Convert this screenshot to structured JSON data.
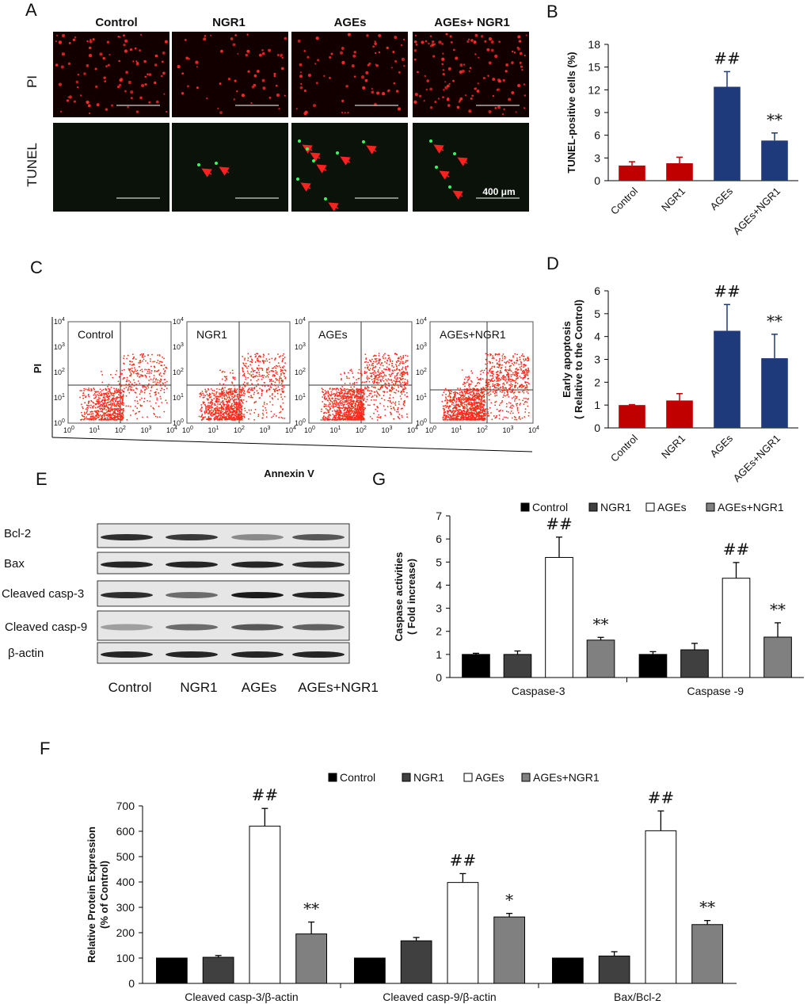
{
  "panel_letters": {
    "a": "A",
    "b": "B",
    "c": "C",
    "d": "D",
    "e": "E",
    "f": "F",
    "g": "G"
  },
  "panel_a": {
    "columns": [
      "Control",
      "NGR1",
      "AGEs",
      "AGEs+ NGR1"
    ],
    "rows": [
      "PI",
      "TUNEL"
    ],
    "scale_bar": "400 μm"
  },
  "panel_c": {
    "plots": [
      "Control",
      "NGR1",
      "AGEs",
      "AGEs+NGR1"
    ],
    "xlabel": "Annexin V",
    "ylabel": "PI",
    "ticks": [
      "10",
      "10",
      "10",
      "10",
      "10"
    ],
    "tick_exponents": [
      "0",
      "1",
      "2",
      "3",
      "4"
    ]
  },
  "panel_e": {
    "proteins": [
      "Bcl-2",
      "Bax",
      "Cleaved casp-3",
      "Cleaved casp-9",
      "β-actin"
    ],
    "groups": [
      "Control",
      "NGR1",
      "AGEs",
      "AGEs+NGR1"
    ]
  },
  "colors": {
    "red": "#c00000",
    "navy": "#1f3a7a",
    "black": "#000000",
    "dark": "#404040",
    "white": "#ffffff",
    "grey": "#808080"
  },
  "chart_data": [
    {
      "id": "B",
      "type": "bar",
      "categories": [
        "Control",
        "NGR1",
        "AGEs",
        "AGEs+NGR1"
      ],
      "values": [
        2.0,
        2.3,
        12.4,
        5.3
      ],
      "errors": [
        0.5,
        0.8,
        2.0,
        1.0
      ],
      "bar_colors": [
        "red",
        "red",
        "navy",
        "navy"
      ],
      "annotations": [
        "",
        "",
        "##",
        "**"
      ],
      "ylabel": "TUNEL-positive cells (%)",
      "ylim": [
        0,
        18
      ],
      "yticks": [
        0,
        3,
        6,
        9,
        12,
        15,
        18
      ]
    },
    {
      "id": "D",
      "type": "bar",
      "categories": [
        "Control",
        "NGR1",
        "AGEs",
        "AGEs+NGR1"
      ],
      "values": [
        1.0,
        1.2,
        4.25,
        3.05
      ],
      "errors": [
        0.02,
        0.3,
        1.15,
        1.05
      ],
      "bar_colors": [
        "red",
        "red",
        "navy",
        "navy"
      ],
      "annotations": [
        "",
        "",
        "##",
        "**"
      ],
      "ylabel": "Early apoptosis",
      "ylabel2": "( Relative to the Control)",
      "ylim": [
        0,
        6
      ],
      "yticks": [
        0,
        1,
        2,
        3,
        4,
        5,
        6
      ]
    },
    {
      "id": "G",
      "type": "bar",
      "legend": [
        "Control",
        "NGR1",
        "AGEs",
        "AGEs+NGR1"
      ],
      "legend_colors": [
        "black",
        "dark",
        "white",
        "grey"
      ],
      "categories": [
        "Caspase-3",
        "Caspase -9"
      ],
      "series": [
        {
          "name": "Control",
          "values": [
            1.0,
            1.0
          ],
          "errors": [
            0.05,
            0.12
          ]
        },
        {
          "name": "NGR1",
          "values": [
            1.0,
            1.2
          ],
          "errors": [
            0.15,
            0.28
          ]
        },
        {
          "name": "AGEs",
          "values": [
            5.2,
            4.3
          ],
          "errors": [
            0.88,
            0.68
          ]
        },
        {
          "name": "AGEs+NGR1",
          "values": [
            1.62,
            1.75
          ],
          "errors": [
            0.12,
            0.62
          ]
        }
      ],
      "annotations": [
        [
          "",
          "",
          "##",
          "**"
        ],
        [
          "",
          "",
          "##",
          "**"
        ]
      ],
      "ylabel": "Caspase activities",
      "ylabel2": "( Fold increase)",
      "ylim": [
        0,
        7
      ],
      "yticks": [
        0,
        1,
        2,
        3,
        4,
        5,
        6,
        7
      ]
    },
    {
      "id": "F",
      "type": "bar",
      "legend": [
        "Control",
        "NGR1",
        "AGEs",
        "AGEs+NGR1"
      ],
      "legend_colors": [
        "black",
        "dark",
        "white",
        "grey"
      ],
      "categories": [
        "Cleaved casp-3/β-actin",
        "Cleaved casp-9/β-actin",
        "Bax/Bcl-2"
      ],
      "series": [
        {
          "name": "Control",
          "values": [
            100,
            100,
            100
          ],
          "errors": [
            0,
            0,
            0
          ]
        },
        {
          "name": "NGR1",
          "values": [
            103,
            168,
            108
          ],
          "errors": [
            7,
            13,
            17
          ]
        },
        {
          "name": "AGEs",
          "values": [
            620,
            398,
            602
          ],
          "errors": [
            70,
            35,
            78
          ]
        },
        {
          "name": "AGEs+NGR1",
          "values": [
            195,
            262,
            232
          ],
          "errors": [
            47,
            14,
            16
          ]
        }
      ],
      "annotations": [
        [
          "",
          "",
          "##",
          "**"
        ],
        [
          "",
          "",
          "##",
          "*"
        ],
        [
          "",
          "",
          "##",
          "**"
        ]
      ],
      "ylabel": "Relative Protein Expression",
      "ylabel2": "(% of Control)",
      "ylim": [
        0,
        700
      ],
      "yticks": [
        0,
        100,
        200,
        300,
        400,
        500,
        600,
        700
      ]
    }
  ]
}
